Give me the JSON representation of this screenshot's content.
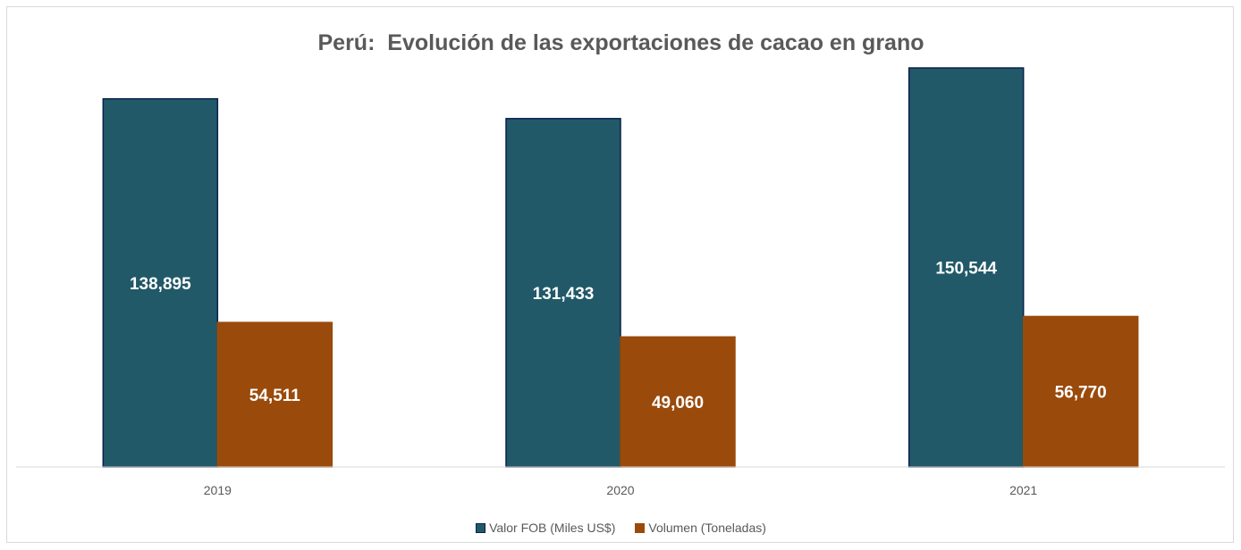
{
  "chart_data": {
    "type": "bar",
    "title": "Perú:  Evolución de las exportaciones de cacao en grano",
    "categories": [
      "2019",
      "2020",
      "2021"
    ],
    "series": [
      {
        "name": "Valor FOB (Miles US$)",
        "values": [
          138895,
          131433,
          150544
        ],
        "labels": [
          "138,895",
          "131,433",
          "150,544"
        ],
        "color": "#215968",
        "border": "#0b1f4e"
      },
      {
        "name": "Volumen (Toneladas)",
        "values": [
          54511,
          49060,
          56770
        ],
        "labels": [
          "54,511",
          "49,060",
          "56,770"
        ],
        "color": "#9a4a0b",
        "border": "#9a4a0b"
      }
    ],
    "ylim": [
      0,
      160000
    ],
    "grid": false,
    "legend": "bottom",
    "data_labels": true,
    "xlabel": "",
    "ylabel": ""
  }
}
